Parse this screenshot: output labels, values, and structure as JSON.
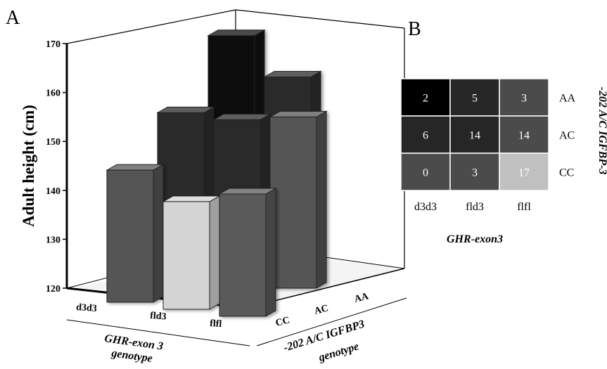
{
  "panel_labels": {
    "a": "A",
    "b": "B"
  },
  "chart_data": [
    {
      "type": "bar",
      "subtype": "3d-bar",
      "panel": "A",
      "ylabel": "Adult  height (cm)",
      "ylim": [
        120,
        170
      ],
      "yticks": [
        120,
        130,
        140,
        150,
        160,
        170
      ],
      "x_axis": {
        "name_line1": "GHR-exon 3",
        "name_line2": "genotype",
        "categories": [
          "d3d3",
          "fld3",
          "flfl"
        ]
      },
      "z_axis": {
        "name_line1": "-202 A/C IGFBP3",
        "name_line2": "genotype",
        "categories": [
          "CC",
          "AC",
          "AA"
        ]
      },
      "bars": [
        {
          "ghr": "d3d3",
          "igfbp3": "AA",
          "value": 163,
          "color": "#0c0c0c"
        },
        {
          "ghr": "fld3",
          "igfbp3": "AA",
          "value": 156,
          "color": "#2a2a2a"
        },
        {
          "ghr": "flfl",
          "igfbp3": "AA",
          "value": null,
          "color": "#3a3a3a"
        },
        {
          "ghr": "d3d3",
          "igfbp3": "AC",
          "value": 153,
          "color": "#2a2a2a"
        },
        {
          "ghr": "fld3",
          "igfbp3": "AC",
          "value": 153,
          "color": "#2a2a2a"
        },
        {
          "ghr": "flfl",
          "igfbp3": "AC",
          "value": 155,
          "color": "#545454"
        },
        {
          "ghr": "d3d3",
          "igfbp3": "CC",
          "value": 147,
          "color": "#555555"
        },
        {
          "ghr": "fld3",
          "igfbp3": "CC",
          "value": 142,
          "color": "#d4d4d4"
        },
        {
          "ghr": "flfl",
          "igfbp3": "CC",
          "value": 145,
          "color": "#5a5a5a"
        }
      ]
    },
    {
      "type": "heatmap",
      "panel": "B",
      "xlabel": "GHR-exon3",
      "ylabel": "-202 A/C IGFBP-3",
      "columns": [
        "d3d3",
        "fld3",
        "flfl"
      ],
      "rows": [
        "AA",
        "AC",
        "CC"
      ],
      "cells": [
        [
          {
            "label": "2",
            "color": "#000000"
          },
          {
            "label": "5",
            "color": "#272727"
          },
          {
            "label": "3",
            "color": "#4b4b4b"
          }
        ],
        [
          {
            "label": "6",
            "color": "#262626"
          },
          {
            "label": "14",
            "color": "#262626"
          },
          {
            "label": "14",
            "color": "#4b4b4b"
          }
        ],
        [
          {
            "label": "0",
            "color": "#4b4b4b"
          },
          {
            "label": "3",
            "color": "#4b4b4b"
          },
          {
            "label": "17",
            "color": "#c0c0c0"
          }
        ]
      ]
    }
  ]
}
